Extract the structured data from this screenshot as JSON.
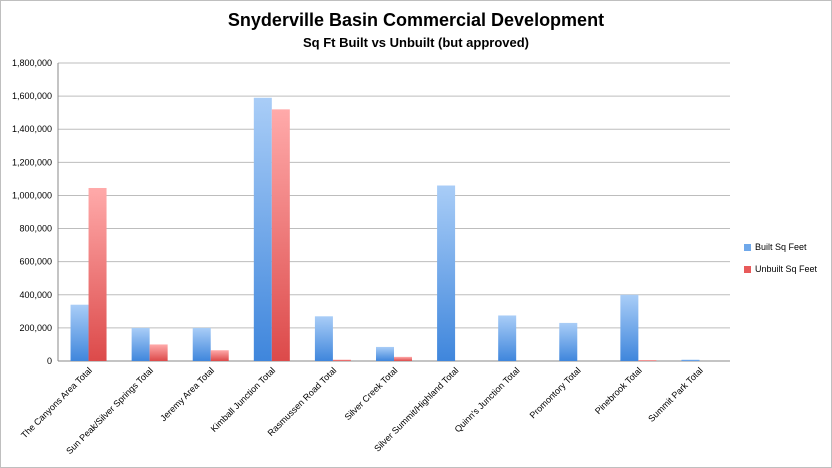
{
  "chart_data": {
    "type": "bar",
    "title": "Snyderville Basin Commercial Development",
    "subtitle": "Sq Ft Built vs Unbuilt (but approved)",
    "categories": [
      "The Canyons Area Total",
      "Sun Peak/Silver Springs Total",
      "Jeremy Area Total",
      "Kimball Junction Total",
      "Rasmussen Road Total",
      "Silver Creek Total",
      "Silver Summit/Highland Total",
      "Quinn's Junction Total",
      "Promontory Total",
      "Pinebrook Total",
      "Summit Park Total"
    ],
    "series": [
      {
        "name": "Built Sq Feet",
        "color": "#6fa8ea",
        "values": [
          340000,
          200000,
          200000,
          1590000,
          270000,
          85000,
          1060000,
          275000,
          230000,
          400000,
          8000
        ]
      },
      {
        "name": "Unbuilt Sq Feet",
        "color": "#e85a5a",
        "values": [
          1045000,
          100000,
          65000,
          1520000,
          8000,
          25000,
          0,
          0,
          0,
          5000,
          0
        ]
      }
    ],
    "ylim": [
      0,
      1800000
    ],
    "yticks": [
      "0",
      "200,000",
      "400,000",
      "600,000",
      "800,000",
      "1,000,000",
      "1,200,000",
      "1,400,000",
      "1,600,000",
      "1,800,000"
    ],
    "grid": true,
    "legend_position": "right"
  }
}
